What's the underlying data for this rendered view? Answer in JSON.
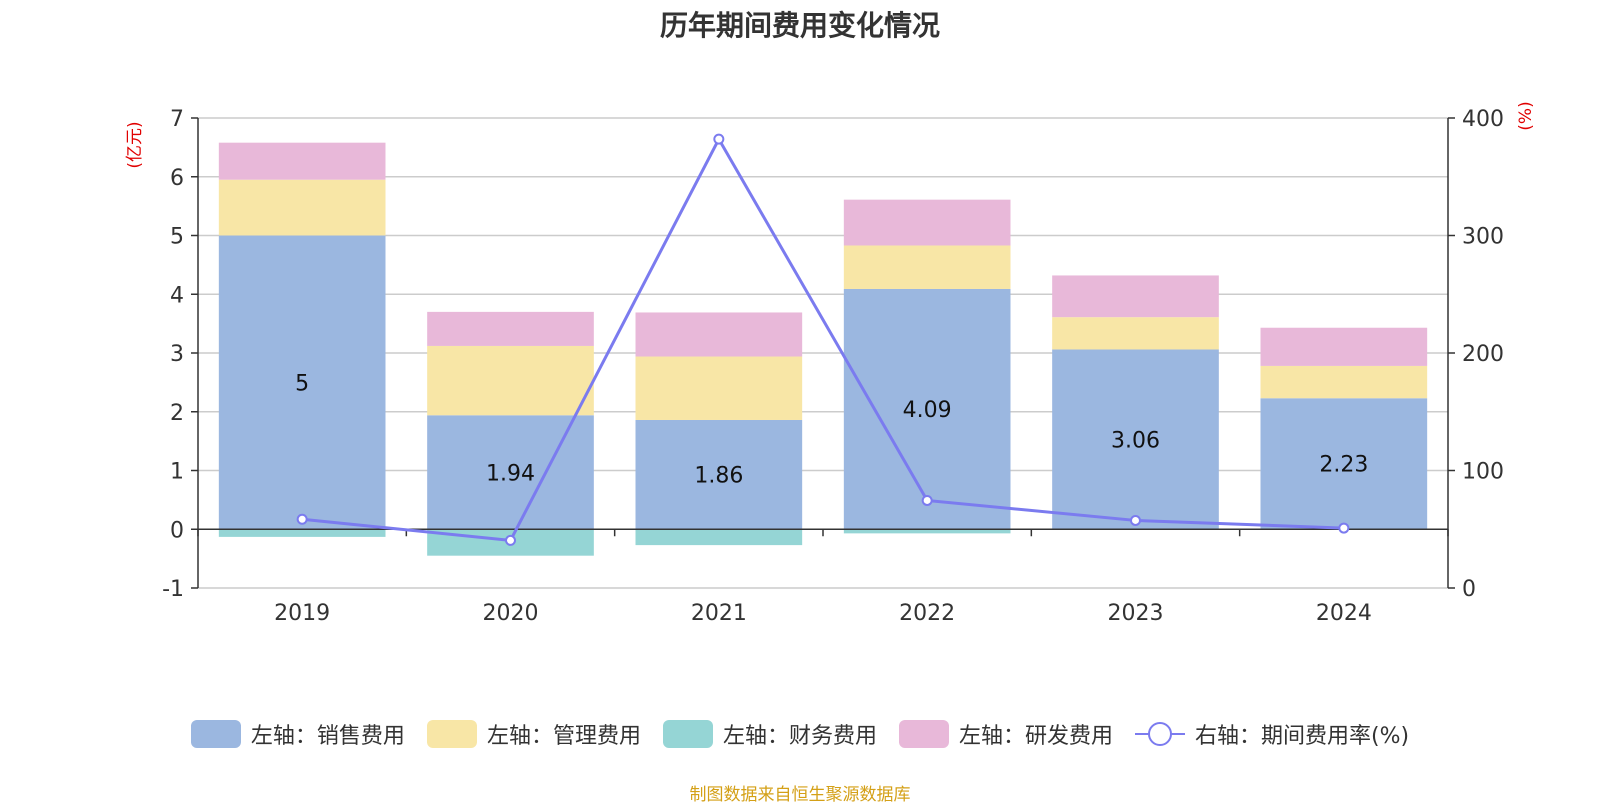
{
  "chart_data": {
    "type": "bar",
    "title": "历年期间费用变化情况",
    "categories": [
      "2019",
      "2020",
      "2021",
      "2022",
      "2023",
      "2024"
    ],
    "left_axis": {
      "unit_label": "(亿元)",
      "ylim": [
        -1,
        7
      ],
      "ticks": [
        -1,
        0,
        1,
        2,
        3,
        4,
        5,
        6,
        7
      ]
    },
    "right_axis": {
      "unit_label": "(%)",
      "ylim": [
        0,
        400
      ],
      "ticks": [
        0,
        100,
        200,
        300,
        400
      ]
    },
    "series": [
      {
        "name": "左轴：销售费用",
        "axis": "left",
        "stack": "cost",
        "color": "#9bb7e0",
        "values": [
          5.0,
          1.94,
          1.86,
          4.09,
          3.06,
          2.23
        ],
        "show_labels": true
      },
      {
        "name": "左轴：管理费用",
        "axis": "left",
        "stack": "cost",
        "color": "#f8e6a6",
        "values": [
          0.95,
          1.18,
          1.08,
          0.74,
          0.55,
          0.55
        ]
      },
      {
        "name": "左轴：财务费用",
        "axis": "left",
        "stack": "cost",
        "color": "#95d5d5",
        "values": [
          -0.13,
          -0.45,
          -0.27,
          -0.07,
          0.0,
          0.0
        ]
      },
      {
        "name": "左轴：研发费用",
        "axis": "left",
        "stack": "cost",
        "color": "#e8b8d9",
        "values": [
          0.63,
          0.58,
          0.75,
          0.78,
          0.71,
          0.65
        ]
      },
      {
        "name": "右轴：期间费用率(%)",
        "axis": "right",
        "type": "line",
        "color": "#7b7bef",
        "values": [
          58.5,
          40.5,
          382,
          74.5,
          57.5,
          51
        ]
      }
    ],
    "grid": true,
    "legend_position": "bottom"
  },
  "source_note": "制图数据来自恒生聚源数据库"
}
